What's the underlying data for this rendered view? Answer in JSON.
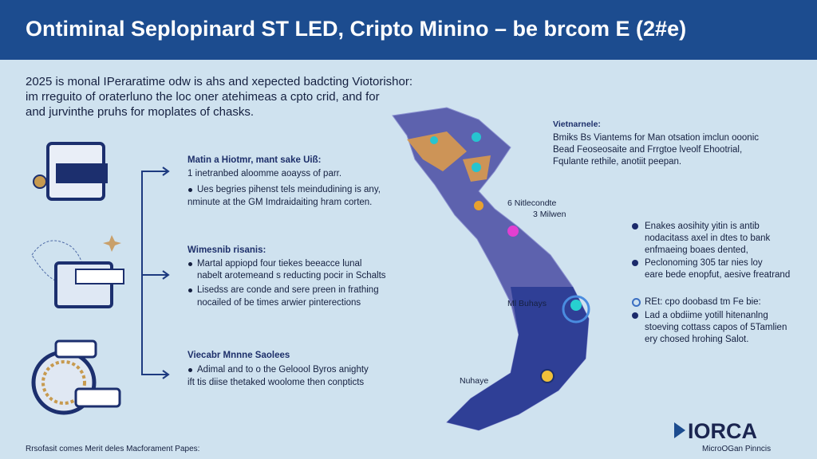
{
  "header": {
    "title": "Ontiminal Seplopinard ST LED, Cripto Minino – be brcom E (2#e)"
  },
  "intro": {
    "lines": [
      "2025 is monal IPeraratime odw is ahs and xepected badcting Viotorishor:",
      "im rreguito of oraterluno the loc oner atehimeas a cpto crid, and for",
      "and jurvinthe pruhs for moplates of chasks."
    ]
  },
  "sections": [
    {
      "heading": "Matin a Hiotmr, mant sake Uiß:",
      "lead": "1 inetranbed aloomme aoayss of parr.",
      "bullets": [
        [
          "Ues begries pihenst tels meindudining is any,",
          "nminute at the GM Imdraidaiting hram corten."
        ]
      ]
    },
    {
      "heading": "Wimesnib risanis:",
      "bullets": [
        [
          "Martal appiopd four tiekes beeacce lunal",
          "nabelt arotemeand s reducting pocir in Schalts"
        ],
        [
          "Lisedss are conde and sere preen in frathing",
          "nocailed of be times arwier pinterections"
        ]
      ]
    },
    {
      "heading": "Viecabr Mnnne Saolees",
      "bullets": [
        [
          "Adimal and to o the Geloool Byros anighty",
          "ift tis diise thetaked woolome then conpticts"
        ]
      ]
    }
  ],
  "map": {
    "labels": [
      "6 Nitlecondte",
      "3 Milwen",
      "Ml Buhays",
      "Nuhaye"
    ]
  },
  "right": {
    "heading": "Vietnarnele:",
    "lines": [
      "Bmiks Bs Viantems for Man otsation imclun ooonic",
      "Bead Feoseosaite and Frrgtoe lveolf Ehootrial,",
      "Fqulante rethile, anotiit peepan."
    ],
    "bullets": [
      [
        "Enakes aosihity yitin is antib",
        "nodacitass axel in dtes to bank",
        "enfmaeing boaes dented,"
      ],
      [
        "Peclonoming 305 tar nies loy",
        "eare bede enopfut, aesive freatrand"
      ],
      [
        "REt: cpo doobasd tm Fe bie:"
      ],
      [
        "Lad a obdiime yotill hitenanlng",
        "stoeving cottass capos of 5Tamlien",
        "ery chosed hrohing Salot."
      ]
    ]
  },
  "logo": {
    "name": "IORCA",
    "tagline": "MicroOGan Pinncis"
  },
  "footer": {
    "text": "Rrsofasit comes Merit deles Macforament Papes:"
  }
}
